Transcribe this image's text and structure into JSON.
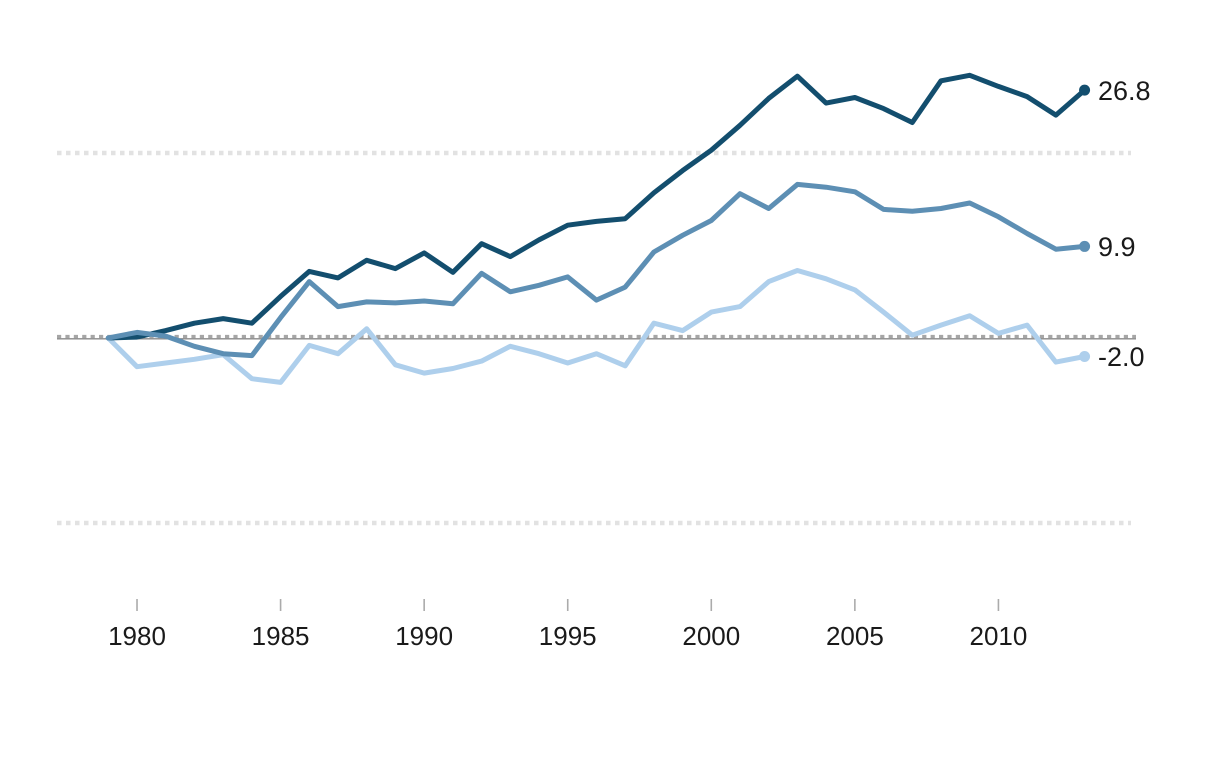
{
  "chart_data": {
    "type": "line",
    "title": "",
    "xlabel": "",
    "ylabel": "",
    "x": [
      1979,
      1980,
      1981,
      1982,
      1983,
      1984,
      1985,
      1986,
      1987,
      1988,
      1989,
      1990,
      1991,
      1992,
      1993,
      1994,
      1995,
      1996,
      1997,
      1998,
      1999,
      2000,
      2001,
      2002,
      2003,
      2004,
      2005,
      2006,
      2007,
      2008,
      2009,
      2010,
      2011,
      2012,
      2013
    ],
    "series": [
      {
        "name": "dark-blue-series",
        "color": "#134e6e",
        "end_label": "26.8",
        "values": [
          0,
          0.1,
          0.8,
          1.6,
          2.1,
          1.6,
          4.5,
          7.2,
          6.5,
          8.4,
          7.5,
          9.2,
          7.1,
          10.2,
          8.8,
          10.6,
          12.2,
          12.6,
          12.9,
          15.7,
          18.1,
          20.3,
          23.0,
          25.9,
          28.3,
          25.4,
          26.0,
          24.8,
          23.3,
          27.8,
          28.4,
          27.2,
          26.1,
          24.1,
          26.8
        ]
      },
      {
        "name": "medium-blue-series",
        "color": "#5d8fb4",
        "end_label": "9.9",
        "values": [
          0,
          0.6,
          0.2,
          -0.9,
          -1.7,
          -1.9,
          2.2,
          6.1,
          3.4,
          3.9,
          3.8,
          4.0,
          3.7,
          7.0,
          5.0,
          5.7,
          6.6,
          4.1,
          5.5,
          9.3,
          11.1,
          12.7,
          15.6,
          14.0,
          16.6,
          16.3,
          15.8,
          13.9,
          13.7,
          14.0,
          14.6,
          13.1,
          11.3,
          9.6,
          9.9
        ]
      },
      {
        "name": "light-blue-series",
        "color": "#aecfec",
        "end_label": "-2.0",
        "values": [
          0,
          -3.1,
          -2.7,
          -2.3,
          -1.8,
          -4.4,
          -4.8,
          -0.8,
          -1.7,
          1.0,
          -2.9,
          -3.8,
          -3.3,
          -2.5,
          -0.9,
          -1.7,
          -2.7,
          -1.7,
          -3.0,
          1.6,
          0.8,
          2.8,
          3.4,
          6.1,
          7.3,
          6.4,
          5.2,
          2.8,
          0.3,
          1.4,
          2.4,
          0.5,
          1.4,
          -2.6,
          -2.0
        ]
      }
    ],
    "x_axis": {
      "ticks": [
        1980,
        1985,
        1990,
        1995,
        2000,
        2005,
        2010
      ],
      "tick_labels": [
        "1980",
        "1985",
        "1990",
        "1995",
        "2000",
        "2005",
        "2010"
      ]
    },
    "y_axis": {
      "ylim": [
        -26,
        36
      ],
      "dotted_gridlines": [
        20,
        -20
      ],
      "zero_line": 0
    },
    "legend": {
      "visible": false
    },
    "colors": {
      "gridline_dotted": "#e2e2e2",
      "zero_line_solid": "#8a8a8a",
      "zero_line_dashes": "#a6a6a6",
      "tick_mark": "#ababab",
      "label_text": "#1a1a1a"
    }
  }
}
